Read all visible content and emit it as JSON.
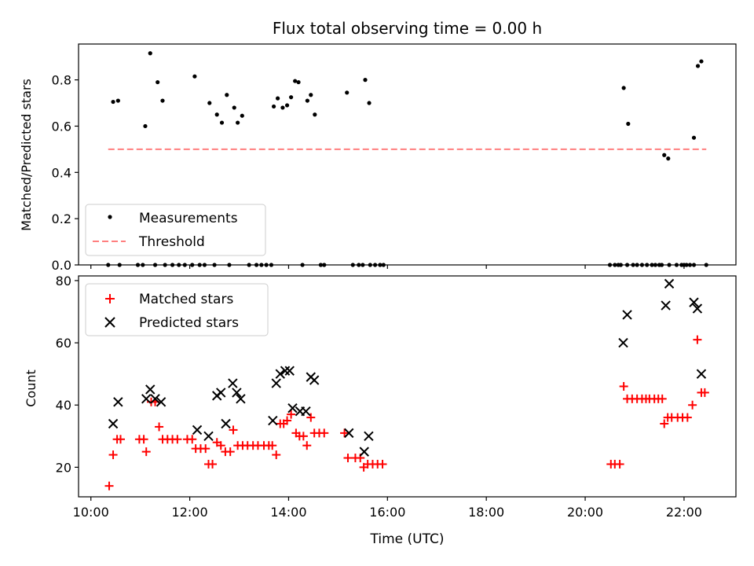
{
  "chart_data": [
    {
      "type": "scatter",
      "title": "Flux total observing time = 0.00 h",
      "xlabel": "",
      "ylabel": "Matched/Predicted stars",
      "xlim": [
        9.75,
        23.05
      ],
      "ylim": [
        0.0,
        0.955
      ],
      "x_tick_values": [
        10,
        12,
        14,
        16,
        18,
        20,
        22
      ],
      "y_ticks": [
        "0.0",
        "0.2",
        "0.4",
        "0.6",
        "0.8"
      ],
      "y_tick_values": [
        0.0,
        0.2,
        0.4,
        0.6,
        0.8
      ],
      "legend": {
        "position": "lower-left",
        "entries": [
          "Measurements",
          "Threshold"
        ]
      },
      "series": [
        {
          "name": "Measurements",
          "marker": "dot",
          "color": "#000000",
          "x": [
            10.45,
            10.55,
            11.1,
            11.2,
            11.35,
            11.45,
            12.1,
            12.4,
            12.55,
            12.65,
            12.75,
            12.9,
            12.97,
            13.06,
            13.7,
            13.78,
            13.88,
            13.97,
            14.05,
            14.13,
            14.2,
            14.38,
            14.45,
            14.53,
            15.18,
            15.55,
            15.63,
            20.78,
            20.87,
            21.6,
            21.68,
            22.2,
            22.28,
            22.35,
            10.35,
            10.58,
            10.95,
            11.05,
            11.3,
            11.5,
            11.65,
            11.78,
            11.9,
            12.05,
            12.2,
            12.3,
            12.5,
            12.8,
            13.2,
            13.35,
            13.45,
            13.55,
            13.65,
            14.28,
            14.65,
            14.72,
            15.3,
            15.42,
            15.5,
            15.65,
            15.75,
            15.85,
            15.92,
            20.5,
            20.6,
            20.67,
            20.72,
            20.85,
            20.97,
            21.05,
            21.15,
            21.25,
            21.35,
            21.42,
            21.5,
            21.55,
            21.7,
            21.85,
            21.95,
            22.0,
            22.05,
            22.12,
            22.2,
            22.45
          ],
          "y": [
            0.705,
            0.71,
            0.6,
            0.915,
            0.79,
            0.71,
            0.815,
            0.7,
            0.65,
            0.615,
            0.735,
            0.68,
            0.615,
            0.645,
            0.685,
            0.72,
            0.68,
            0.69,
            0.725,
            0.795,
            0.79,
            0.71,
            0.735,
            0.65,
            0.745,
            0.8,
            0.7,
            0.765,
            0.61,
            0.475,
            0.46,
            0.55,
            0.86,
            0.88,
            0,
            0,
            0,
            0,
            0,
            0,
            0,
            0,
            0,
            0,
            0,
            0,
            0,
            0,
            0,
            0,
            0,
            0,
            0,
            0,
            0,
            0,
            0,
            0,
            0,
            0,
            0,
            0,
            0,
            0,
            0,
            0,
            0,
            0,
            0,
            0,
            0,
            0,
            0,
            0,
            0,
            0,
            0,
            0,
            0,
            0,
            0,
            0,
            0,
            0
          ]
        },
        {
          "name": "Threshold",
          "type": "line",
          "style": "dashed",
          "color": "#ff7f7f",
          "x": [
            10.35,
            22.45
          ],
          "y": [
            0.5,
            0.5
          ]
        }
      ]
    },
    {
      "type": "scatter",
      "title": "",
      "xlabel": "Time (UTC)",
      "ylabel": "Count",
      "xlim": [
        9.75,
        23.05
      ],
      "ylim": [
        10.5,
        81.5
      ],
      "x_ticks": [
        "10:00",
        "12:00",
        "14:00",
        "16:00",
        "18:00",
        "20:00",
        "22:00"
      ],
      "x_tick_values": [
        10,
        12,
        14,
        16,
        18,
        20,
        22
      ],
      "y_ticks": [
        "20",
        "40",
        "60",
        "80"
      ],
      "y_tick_values": [
        20,
        40,
        60,
        80
      ],
      "legend": {
        "position": "top-left",
        "entries": [
          "Matched stars",
          "Predicted stars"
        ]
      },
      "series": [
        {
          "name": "Matched stars",
          "marker": "plus",
          "color": "#ff0000",
          "x": [
            10.37,
            10.45,
            10.53,
            10.6,
            10.98,
            11.07,
            11.12,
            11.22,
            11.3,
            11.38,
            11.45,
            11.55,
            11.65,
            11.75,
            11.95,
            12.05,
            12.12,
            12.22,
            12.32,
            12.38,
            12.46,
            12.55,
            12.63,
            12.72,
            12.82,
            12.88,
            12.97,
            13.07,
            13.17,
            13.28,
            13.38,
            13.5,
            13.6,
            13.67,
            13.75,
            13.83,
            13.9,
            13.97,
            14.05,
            14.15,
            14.22,
            14.3,
            14.37,
            14.45,
            14.52,
            14.62,
            14.72,
            15.13,
            15.2,
            15.35,
            15.45,
            15.52,
            15.6,
            15.7,
            15.8,
            15.9,
            20.52,
            20.6,
            20.7,
            20.78,
            20.85,
            20.95,
            21.05,
            21.15,
            21.23,
            21.3,
            21.4,
            21.48,
            21.56,
            21.6,
            21.67,
            21.75,
            21.87,
            21.97,
            22.07,
            22.17,
            22.27,
            22.35,
            22.42
          ],
          "y": [
            14,
            24,
            29,
            29,
            29,
            29,
            25,
            41,
            41,
            33,
            29,
            29,
            29,
            29,
            29,
            29,
            26,
            26,
            26,
            21,
            21,
            28,
            27,
            25,
            25,
            32,
            27,
            27,
            27,
            27,
            27,
            27,
            27,
            27,
            24,
            34,
            34,
            35,
            37,
            31,
            30,
            30,
            27,
            36,
            31,
            31,
            31,
            31,
            23,
            23,
            23,
            20,
            21,
            21,
            21,
            21,
            21,
            21,
            21,
            46,
            42,
            42,
            42,
            42,
            42,
            42,
            42,
            42,
            42,
            34,
            36,
            36,
            36,
            36,
            36,
            40,
            61,
            44,
            44
          ]
        },
        {
          "name": "Predicted stars",
          "marker": "x",
          "color": "#000000",
          "x": [
            10.45,
            10.55,
            11.12,
            11.2,
            11.3,
            11.42,
            12.15,
            12.38,
            12.55,
            12.63,
            12.73,
            12.87,
            12.95,
            13.03,
            13.68,
            13.75,
            13.83,
            13.93,
            14.02,
            14.08,
            14.23,
            14.35,
            14.45,
            14.52,
            15.22,
            15.53,
            15.62,
            20.77,
            20.85,
            21.63,
            21.7,
            22.2,
            22.27,
            22.35
          ],
          "y": [
            34,
            41,
            42,
            45,
            42,
            41,
            32,
            30,
            43,
            44,
            34,
            47,
            44,
            42,
            35,
            47,
            50,
            51,
            51,
            39,
            38,
            38,
            49,
            48,
            31,
            25,
            30,
            60,
            69,
            72,
            79,
            73,
            71,
            50
          ]
        }
      ]
    }
  ]
}
